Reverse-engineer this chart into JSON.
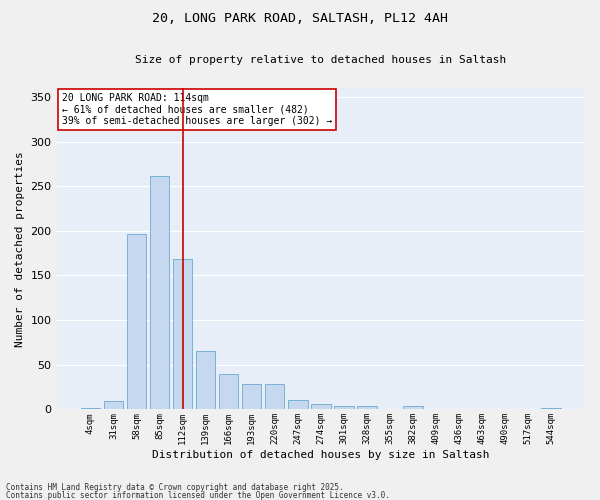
{
  "title_line1": "20, LONG PARK ROAD, SALTASH, PL12 4AH",
  "title_line2": "Size of property relative to detached houses in Saltash",
  "xlabel": "Distribution of detached houses by size in Saltash",
  "ylabel": "Number of detached properties",
  "bar_labels": [
    "4sqm",
    "31sqm",
    "58sqm",
    "85sqm",
    "112sqm",
    "139sqm",
    "166sqm",
    "193sqm",
    "220sqm",
    "247sqm",
    "274sqm",
    "301sqm",
    "328sqm",
    "355sqm",
    "382sqm",
    "409sqm",
    "436sqm",
    "463sqm",
    "490sqm",
    "517sqm",
    "544sqm"
  ],
  "bar_heights": [
    2,
    9,
    196,
    261,
    169,
    65,
    40,
    29,
    29,
    11,
    6,
    4,
    4,
    0,
    4,
    0,
    0,
    0,
    0,
    0,
    2
  ],
  "bar_color": "#c5d8f0",
  "bar_edge_color": "#6aabd2",
  "background_color": "#e8eef8",
  "grid_color": "#ffffff",
  "vline_x_index": 4,
  "vline_color": "#cc0000",
  "annotation_text": "20 LONG PARK ROAD: 114sqm\n← 61% of detached houses are smaller (482)\n39% of semi-detached houses are larger (302) →",
  "annotation_box_facecolor": "#ffffff",
  "annotation_box_edgecolor": "#cc0000",
  "ylim": [
    0,
    360
  ],
  "yticks": [
    0,
    50,
    100,
    150,
    200,
    250,
    300,
    350
  ],
  "fig_bg": "#f0f0f0",
  "footer_line1": "Contains HM Land Registry data © Crown copyright and database right 2025.",
  "footer_line2": "Contains public sector information licensed under the Open Government Licence v3.0."
}
